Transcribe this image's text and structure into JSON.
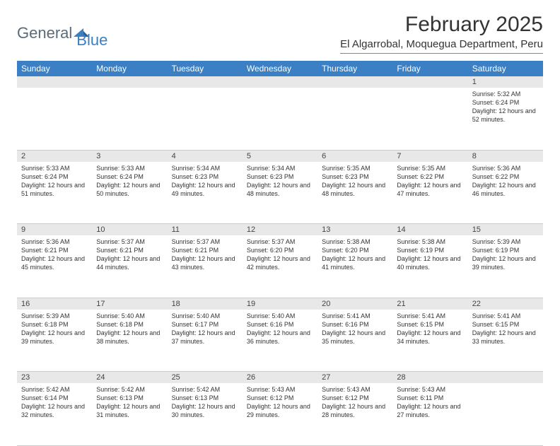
{
  "logo": {
    "text1": "General",
    "text2": "Blue"
  },
  "title": "February 2025",
  "location": "El Algarrobal, Moquegua Department, Peru",
  "columns": [
    "Sunday",
    "Monday",
    "Tuesday",
    "Wednesday",
    "Thursday",
    "Friday",
    "Saturday"
  ],
  "colors": {
    "header_bg": "#3b7fc4",
    "header_text": "#ffffff",
    "daynum_bg": "#e8e8e8",
    "body_bg": "#ffffff",
    "text": "#333333",
    "logo_gray": "#5a6b7a",
    "logo_blue": "#3b7fc4",
    "border": "#cccccc"
  },
  "typography": {
    "title_size_pt": 22,
    "location_size_pt": 11,
    "header_size_pt": 9,
    "daynum_size_pt": 8,
    "detail_size_pt": 7
  },
  "weeks": [
    [
      null,
      null,
      null,
      null,
      null,
      null,
      {
        "n": "1",
        "sr": "Sunrise: 5:32 AM",
        "ss": "Sunset: 6:24 PM",
        "dl": "Daylight: 12 hours and 52 minutes."
      }
    ],
    [
      {
        "n": "2",
        "sr": "Sunrise: 5:33 AM",
        "ss": "Sunset: 6:24 PM",
        "dl": "Daylight: 12 hours and 51 minutes."
      },
      {
        "n": "3",
        "sr": "Sunrise: 5:33 AM",
        "ss": "Sunset: 6:24 PM",
        "dl": "Daylight: 12 hours and 50 minutes."
      },
      {
        "n": "4",
        "sr": "Sunrise: 5:34 AM",
        "ss": "Sunset: 6:23 PM",
        "dl": "Daylight: 12 hours and 49 minutes."
      },
      {
        "n": "5",
        "sr": "Sunrise: 5:34 AM",
        "ss": "Sunset: 6:23 PM",
        "dl": "Daylight: 12 hours and 48 minutes."
      },
      {
        "n": "6",
        "sr": "Sunrise: 5:35 AM",
        "ss": "Sunset: 6:23 PM",
        "dl": "Daylight: 12 hours and 48 minutes."
      },
      {
        "n": "7",
        "sr": "Sunrise: 5:35 AM",
        "ss": "Sunset: 6:22 PM",
        "dl": "Daylight: 12 hours and 47 minutes."
      },
      {
        "n": "8",
        "sr": "Sunrise: 5:36 AM",
        "ss": "Sunset: 6:22 PM",
        "dl": "Daylight: 12 hours and 46 minutes."
      }
    ],
    [
      {
        "n": "9",
        "sr": "Sunrise: 5:36 AM",
        "ss": "Sunset: 6:21 PM",
        "dl": "Daylight: 12 hours and 45 minutes."
      },
      {
        "n": "10",
        "sr": "Sunrise: 5:37 AM",
        "ss": "Sunset: 6:21 PM",
        "dl": "Daylight: 12 hours and 44 minutes."
      },
      {
        "n": "11",
        "sr": "Sunrise: 5:37 AM",
        "ss": "Sunset: 6:21 PM",
        "dl": "Daylight: 12 hours and 43 minutes."
      },
      {
        "n": "12",
        "sr": "Sunrise: 5:37 AM",
        "ss": "Sunset: 6:20 PM",
        "dl": "Daylight: 12 hours and 42 minutes."
      },
      {
        "n": "13",
        "sr": "Sunrise: 5:38 AM",
        "ss": "Sunset: 6:20 PM",
        "dl": "Daylight: 12 hours and 41 minutes."
      },
      {
        "n": "14",
        "sr": "Sunrise: 5:38 AM",
        "ss": "Sunset: 6:19 PM",
        "dl": "Daylight: 12 hours and 40 minutes."
      },
      {
        "n": "15",
        "sr": "Sunrise: 5:39 AM",
        "ss": "Sunset: 6:19 PM",
        "dl": "Daylight: 12 hours and 39 minutes."
      }
    ],
    [
      {
        "n": "16",
        "sr": "Sunrise: 5:39 AM",
        "ss": "Sunset: 6:18 PM",
        "dl": "Daylight: 12 hours and 39 minutes."
      },
      {
        "n": "17",
        "sr": "Sunrise: 5:40 AM",
        "ss": "Sunset: 6:18 PM",
        "dl": "Daylight: 12 hours and 38 minutes."
      },
      {
        "n": "18",
        "sr": "Sunrise: 5:40 AM",
        "ss": "Sunset: 6:17 PM",
        "dl": "Daylight: 12 hours and 37 minutes."
      },
      {
        "n": "19",
        "sr": "Sunrise: 5:40 AM",
        "ss": "Sunset: 6:16 PM",
        "dl": "Daylight: 12 hours and 36 minutes."
      },
      {
        "n": "20",
        "sr": "Sunrise: 5:41 AM",
        "ss": "Sunset: 6:16 PM",
        "dl": "Daylight: 12 hours and 35 minutes."
      },
      {
        "n": "21",
        "sr": "Sunrise: 5:41 AM",
        "ss": "Sunset: 6:15 PM",
        "dl": "Daylight: 12 hours and 34 minutes."
      },
      {
        "n": "22",
        "sr": "Sunrise: 5:41 AM",
        "ss": "Sunset: 6:15 PM",
        "dl": "Daylight: 12 hours and 33 minutes."
      }
    ],
    [
      {
        "n": "23",
        "sr": "Sunrise: 5:42 AM",
        "ss": "Sunset: 6:14 PM",
        "dl": "Daylight: 12 hours and 32 minutes."
      },
      {
        "n": "24",
        "sr": "Sunrise: 5:42 AM",
        "ss": "Sunset: 6:13 PM",
        "dl": "Daylight: 12 hours and 31 minutes."
      },
      {
        "n": "25",
        "sr": "Sunrise: 5:42 AM",
        "ss": "Sunset: 6:13 PM",
        "dl": "Daylight: 12 hours and 30 minutes."
      },
      {
        "n": "26",
        "sr": "Sunrise: 5:43 AM",
        "ss": "Sunset: 6:12 PM",
        "dl": "Daylight: 12 hours and 29 minutes."
      },
      {
        "n": "27",
        "sr": "Sunrise: 5:43 AM",
        "ss": "Sunset: 6:12 PM",
        "dl": "Daylight: 12 hours and 28 minutes."
      },
      {
        "n": "28",
        "sr": "Sunrise: 5:43 AM",
        "ss": "Sunset: 6:11 PM",
        "dl": "Daylight: 12 hours and 27 minutes."
      },
      null
    ]
  ]
}
